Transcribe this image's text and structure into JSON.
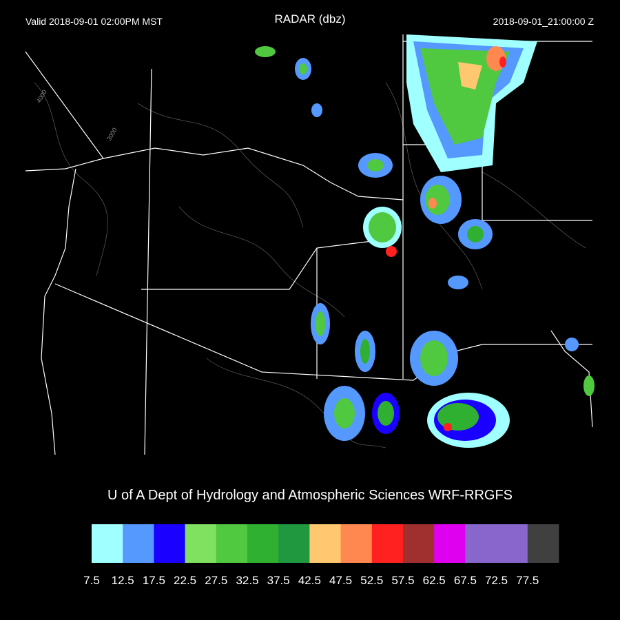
{
  "header": {
    "valid": "Valid 2018-09-01 02:00PM MST",
    "title": "RADAR (dbz)",
    "time": "2018-09-01_21:00:00 Z"
  },
  "map": {
    "contour_labels": [
      "4000",
      "3000"
    ]
  },
  "credit": "U of A Dept of Hydrology and Atmospheric Sciences WRF-RRGFS",
  "colorbar": {
    "levels": [
      7.5,
      12.5,
      17.5,
      22.5,
      27.5,
      32.5,
      37.5,
      42.5,
      47.5,
      52.5,
      57.5,
      62.5,
      67.5,
      72.5,
      77.5
    ],
    "colors": [
      "#a0ffff",
      "#5599ff",
      "#1a00ff",
      "#80e060",
      "#50c840",
      "#30b030",
      "#209840",
      "#ffc870",
      "#ff8850",
      "#ff2020",
      "#a03030",
      "#e000f0",
      "#8866cc",
      "#8866cc",
      "#404040"
    ]
  }
}
